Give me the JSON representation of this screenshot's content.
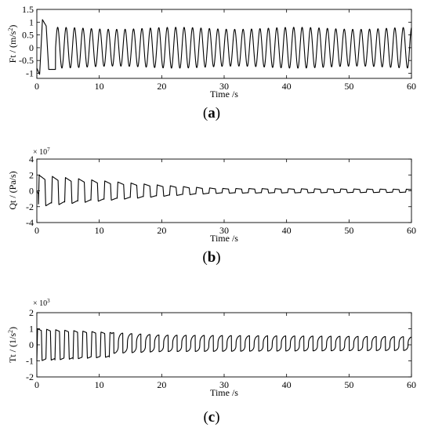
{
  "figure": {
    "panels": [
      {
        "id": "a",
        "label_open": "(",
        "label_letter": "a",
        "label_close": ")",
        "ylabel": "Ft / (m/s²)",
        "ylabel_plain": "Ft / (m/s",
        "ylabel_sup": "2",
        "ylabel_tail": ")",
        "xlabel": "Time /s",
        "exponent_label": "",
        "xticks": [
          "0",
          "10",
          "20",
          "30",
          "40",
          "50",
          "60"
        ],
        "yticks": [
          "1.5",
          "1",
          "0.5",
          "0",
          "-0.5",
          "-1"
        ],
        "ytick_values": [
          1.5,
          1,
          0.5,
          0,
          -0.5,
          -1
        ],
        "ylim": [
          -1.2,
          1.5
        ]
      },
      {
        "id": "b",
        "label_open": "(",
        "label_letter": "b",
        "label_close": ")",
        "ylabel": "Qt / (Pa/s)",
        "ylabel_plain": "Qt / (Pa/s)",
        "ylabel_sup": "",
        "ylabel_tail": "",
        "xlabel": "Time /s",
        "exponent_label": "× 10",
        "exponent_power": "7",
        "xticks": [
          "0",
          "10",
          "20",
          "30",
          "40",
          "50",
          "60"
        ],
        "yticks": [
          "4",
          "2",
          "0",
          "-2",
          "-4"
        ],
        "ytick_values": [
          4,
          2,
          0,
          -2,
          -4
        ],
        "ylim": [
          -4,
          4
        ]
      },
      {
        "id": "c",
        "label_open": "(",
        "label_letter": "c",
        "label_close": ")",
        "ylabel": "Tt / (1/s²)",
        "ylabel_plain": "Tt / (1/s",
        "ylabel_sup": "2",
        "ylabel_tail": ")",
        "xlabel": "Time /s",
        "exponent_label": "× 10",
        "exponent_power": "3",
        "xticks": [
          "0",
          "10",
          "20",
          "30",
          "40",
          "50",
          "60"
        ],
        "yticks": [
          "2",
          "1",
          "0",
          "-1",
          "-2"
        ],
        "ytick_values": [
          2,
          1,
          0,
          -1,
          -2
        ],
        "ylim": [
          -2,
          2
        ]
      }
    ]
  },
  "chart_data": [
    {
      "type": "line",
      "series": [
        {
          "signal": "oscillatory response of Ft (m/s²)",
          "x_range": [
            0,
            60
          ],
          "initial_peak": 1.1,
          "steady_amplitude_high": 0.8,
          "steady_amplitude_low": -0.8,
          "approx_period_s": 1.35,
          "values_sample": [
            [
              0.0,
              -0.8
            ],
            [
              0.3,
              -0.9
            ],
            [
              0.8,
              1.05
            ],
            [
              1.3,
              0.9
            ],
            [
              2.0,
              -0.85
            ],
            [
              3.0,
              0.8
            ],
            [
              3.6,
              -0.8
            ],
            [
              5.0,
              0.8
            ],
            [
              10.0,
              -0.8
            ],
            [
              20.0,
              0.8
            ],
            [
              30.0,
              -0.8
            ],
            [
              40.0,
              0.8
            ],
            [
              50.0,
              -0.8
            ],
            [
              60.0,
              0.0
            ]
          ]
        }
      ],
      "xlim": [
        0,
        60
      ],
      "ylim": [
        -1.2,
        1.5
      ],
      "grid": false
    },
    {
      "type": "line",
      "series": [
        {
          "signal": "decaying sawtooth response of Qt (×1e7 Pa/s)",
          "x_range": [
            0,
            60
          ],
          "initial_amplitude": 2.0,
          "amplitude_at_30s": 0.3,
          "amplitude_at_60s": 0.2,
          "approx_period_s": 2.1,
          "values_sample": [
            [
              0.5,
              2.0
            ],
            [
              1.5,
              -1.9
            ],
            [
              3.0,
              1.9
            ],
            [
              10.0,
              1.5
            ],
            [
              20.0,
              0.8
            ],
            [
              25.0,
              0.4
            ],
            [
              30.0,
              0.3
            ],
            [
              40.0,
              0.2
            ],
            [
              60.0,
              0.2
            ]
          ]
        }
      ],
      "xlim": [
        0,
        60
      ],
      "ylim": [
        -4,
        4
      ],
      "grid": false
    },
    {
      "type": "line",
      "series": [
        {
          "signal": "oscillatory response of Tt (×1e3 1/s²)",
          "x_range": [
            0,
            60
          ],
          "initial_amplitude": 1.0,
          "amplitude_at_20s": 0.6,
          "amplitude_at_60s": 0.5,
          "approx_period_s": 1.45,
          "values_sample": [
            [
              0.5,
              1.0
            ],
            [
              2.0,
              -1.0
            ],
            [
              3.0,
              0.95
            ],
            [
              10.0,
              0.75
            ],
            [
              20.0,
              0.6
            ],
            [
              30.0,
              0.6
            ],
            [
              40.0,
              0.55
            ],
            [
              60.0,
              0.5
            ]
          ]
        }
      ],
      "xlim": [
        0,
        60
      ],
      "ylim": [
        -2,
        2
      ],
      "grid": false
    }
  ]
}
